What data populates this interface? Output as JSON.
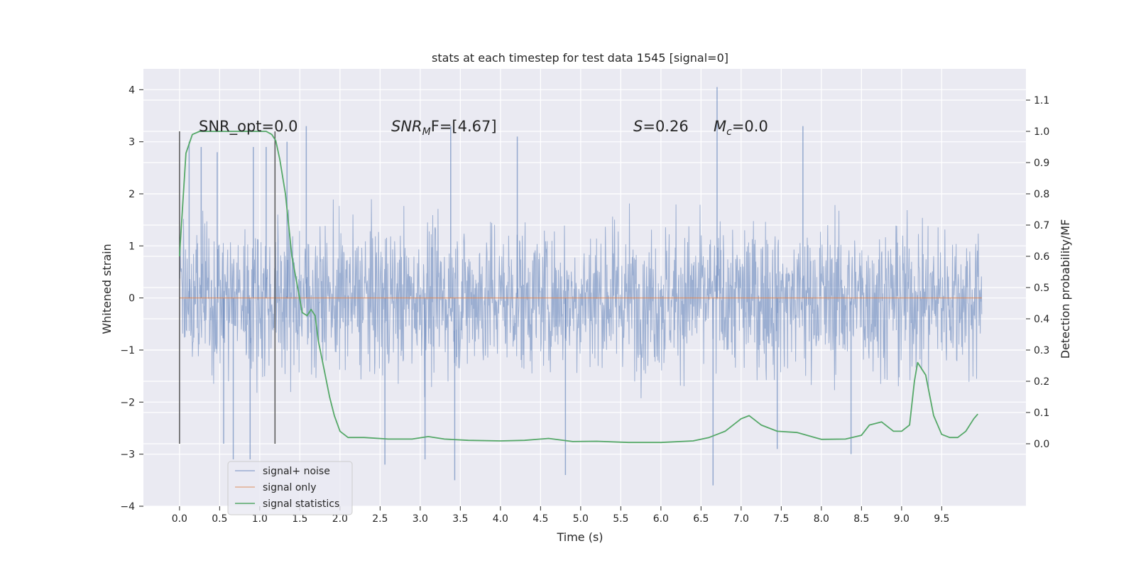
{
  "chart_data": {
    "type": "line",
    "title": "stats at each timestep for test data 1545 [signal=0]",
    "xlabel": "Time (s)",
    "ylabel_left": "Whitened strain",
    "ylabel_right": "Detection probability/MF",
    "xlim": [
      -0.45,
      10.55
    ],
    "ylim_left": [
      -4,
      4.4
    ],
    "ylim_right": [
      -0.2,
      1.2
    ],
    "xticks": [
      0.0,
      0.5,
      1.0,
      1.5,
      2.0,
      2.5,
      3.0,
      3.5,
      4.0,
      4.5,
      5.0,
      5.5,
      6.0,
      6.5,
      7.0,
      7.5,
      8.0,
      8.5,
      9.0,
      9.5
    ],
    "xtick_labels": [
      "0.0",
      "0.5",
      "1.0",
      "1.5",
      "2.0",
      "2.5",
      "3.0",
      "3.5",
      "4.0",
      "4.5",
      "5.0",
      "5.5",
      "6.0",
      "6.5",
      "7.0",
      "7.5",
      "8.0",
      "8.5",
      "9.0",
      "9.5"
    ],
    "yticks_left": [
      -4,
      -3,
      -2,
      -1,
      0,
      1,
      2,
      3,
      4
    ],
    "ytick_labels_left": [
      "−4",
      "−3",
      "−2",
      "−1",
      "0",
      "1",
      "2",
      "3",
      "4"
    ],
    "yticks_right": [
      0.0,
      0.1,
      0.2,
      0.3,
      0.4,
      0.5,
      0.6,
      0.7,
      0.8,
      0.9,
      1.0,
      1.1
    ],
    "ytick_labels_right": [
      "0.0",
      "0.1",
      "0.2",
      "0.3",
      "0.4",
      "0.5",
      "0.6",
      "0.7",
      "0.8",
      "0.9",
      "1.0",
      "1.1"
    ],
    "grid": true,
    "legend_position": "lower-left",
    "legend": [
      "signal+ noise",
      "signal only",
      "signal statistics"
    ],
    "annotations": {
      "snr_opt": "SNR_opt=0.0",
      "snr_mf_prefix": "SNR",
      "snr_mf_sub": "M",
      "snr_mf_suffix": "F=[4.67]",
      "s_name": "S",
      "s_value": "=0.26",
      "mc_name": "M",
      "mc_sub": "c",
      "mc_value": "=0.0"
    },
    "vlines": [
      {
        "x": 0.0,
        "y_from": -2.8,
        "y_to": 3.2
      },
      {
        "x": 1.19,
        "y_from": -2.8,
        "y_to": 3.2
      }
    ],
    "series": [
      {
        "name": "signal+ noise",
        "axis": "left",
        "color": "#4c72b0",
        "x_range": [
          0.0,
          10.0
        ],
        "extremes": [
          {
            "x": 0.12,
            "y": 3.0
          },
          {
            "x": 0.27,
            "y": 2.9
          },
          {
            "x": 0.47,
            "y": 2.8
          },
          {
            "x": 0.55,
            "y": -2.8
          },
          {
            "x": 0.67,
            "y": -3.1
          },
          {
            "x": 0.92,
            "y": 2.9
          },
          {
            "x": 0.88,
            "y": -3.1
          },
          {
            "x": 1.08,
            "y": 2.9
          },
          {
            "x": 1.34,
            "y": 3.0
          },
          {
            "x": 1.58,
            "y": 3.3
          },
          {
            "x": 2.56,
            "y": -3.2
          },
          {
            "x": 3.06,
            "y": -3.1
          },
          {
            "x": 3.38,
            "y": 3.3
          },
          {
            "x": 3.43,
            "y": -3.5
          },
          {
            "x": 4.21,
            "y": 3.1
          },
          {
            "x": 4.81,
            "y": -3.4
          },
          {
            "x": 6.7,
            "y": 4.05
          },
          {
            "x": 6.65,
            "y": -3.6
          },
          {
            "x": 7.45,
            "y": -2.9
          },
          {
            "x": 7.77,
            "y": 3.3
          },
          {
            "x": 8.37,
            "y": -3.0
          }
        ]
      },
      {
        "name": "signal only",
        "axis": "left",
        "color": "#dd8452",
        "x": [
          0.0,
          10.0
        ],
        "y": [
          0.0,
          0.0
        ]
      },
      {
        "name": "signal statistics",
        "axis": "right",
        "color": "#55a868",
        "x": [
          0.0,
          0.08,
          0.16,
          0.25,
          0.4,
          0.6,
          0.8,
          1.0,
          1.08,
          1.15,
          1.2,
          1.25,
          1.32,
          1.4,
          1.48,
          1.53,
          1.59,
          1.64,
          1.69,
          1.73,
          1.8,
          1.87,
          1.93,
          2.0,
          2.1,
          2.3,
          2.6,
          2.9,
          3.1,
          3.3,
          3.6,
          4.0,
          4.3,
          4.6,
          4.9,
          5.2,
          5.6,
          6.0,
          6.4,
          6.6,
          6.8,
          7.0,
          7.1,
          7.25,
          7.45,
          7.7,
          8.0,
          8.3,
          8.5,
          8.6,
          8.75,
          8.9,
          9.0,
          9.1,
          9.16,
          9.2,
          9.3,
          9.4,
          9.5,
          9.6,
          9.7,
          9.8,
          9.9,
          9.95
        ],
        "y": [
          0.6,
          0.93,
          0.99,
          1.0,
          1.0,
          1.0,
          1.0,
          1.0,
          1.0,
          0.99,
          0.97,
          0.91,
          0.8,
          0.6,
          0.49,
          0.42,
          0.41,
          0.43,
          0.41,
          0.33,
          0.24,
          0.15,
          0.09,
          0.04,
          0.02,
          0.02,
          0.015,
          0.015,
          0.023,
          0.015,
          0.011,
          0.009,
          0.011,
          0.017,
          0.007,
          0.008,
          0.004,
          0.004,
          0.009,
          0.02,
          0.04,
          0.08,
          0.09,
          0.06,
          0.04,
          0.036,
          0.014,
          0.015,
          0.027,
          0.06,
          0.07,
          0.04,
          0.04,
          0.06,
          0.2,
          0.26,
          0.22,
          0.09,
          0.03,
          0.02,
          0.02,
          0.04,
          0.08,
          0.095
        ]
      }
    ]
  }
}
